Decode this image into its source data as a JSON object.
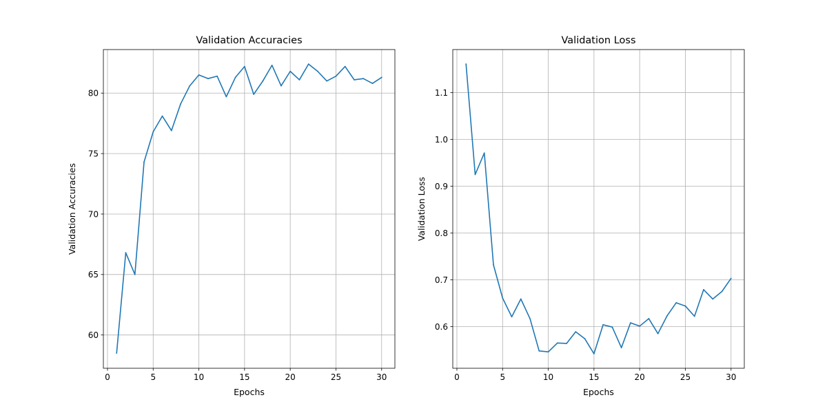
{
  "colors": {
    "line": "#1f77b4",
    "grid": "#b0b0b0",
    "axis": "#000000",
    "background": "#ffffff"
  },
  "chart_data": [
    {
      "type": "line",
      "title": "Validation Accuracies",
      "xlabel": "Epochs",
      "ylabel": "Validation Accuracies",
      "grid": true,
      "xlim": [
        -0.45,
        31.45
      ],
      "ylim": [
        57.25,
        83.6
      ],
      "xticks": [
        0,
        5,
        10,
        15,
        20,
        25,
        30
      ],
      "yticks": [
        60,
        65,
        70,
        75,
        80
      ],
      "x": [
        1,
        2,
        3,
        4,
        5,
        6,
        7,
        8,
        9,
        10,
        11,
        12,
        13,
        14,
        15,
        16,
        17,
        18,
        19,
        20,
        21,
        22,
        23,
        24,
        25,
        26,
        27,
        28,
        29,
        30
      ],
      "series": [
        {
          "values": [
            58.5,
            66.8,
            65.0,
            74.3,
            76.8,
            78.1,
            76.9,
            79.1,
            80.6,
            81.5,
            81.2,
            81.4,
            79.7,
            81.3,
            82.2,
            79.9,
            81.0,
            82.3,
            80.6,
            81.8,
            81.1,
            82.4,
            81.8,
            81.0,
            81.4,
            82.2,
            81.1,
            81.2,
            80.8,
            81.3
          ]
        }
      ]
    },
    {
      "type": "line",
      "title": "Validation Loss",
      "xlabel": "Epochs",
      "ylabel": "Validation Loss",
      "grid": true,
      "xlim": [
        -0.45,
        31.45
      ],
      "ylim": [
        0.511,
        1.192
      ],
      "xticks": [
        0,
        5,
        10,
        15,
        20,
        25,
        30
      ],
      "yticks": [
        0.6,
        0.7,
        0.8,
        0.9,
        1.0,
        1.1
      ],
      "ytick_labels": [
        "0.6",
        "0.7",
        "0.8",
        "0.9",
        "1.0",
        "1.1"
      ],
      "x": [
        1,
        2,
        3,
        4,
        5,
        6,
        7,
        8,
        9,
        10,
        11,
        12,
        13,
        14,
        15,
        16,
        17,
        18,
        19,
        20,
        21,
        22,
        23,
        24,
        25,
        26,
        27,
        28,
        29,
        30
      ],
      "series": [
        {
          "values": [
            1.161,
            0.925,
            0.971,
            0.732,
            0.661,
            0.621,
            0.659,
            0.617,
            0.548,
            0.546,
            0.565,
            0.564,
            0.589,
            0.574,
            0.542,
            0.604,
            0.599,
            0.555,
            0.608,
            0.601,
            0.617,
            0.585,
            0.623,
            0.651,
            0.644,
            0.622,
            0.679,
            0.659,
            0.675,
            0.703
          ]
        }
      ]
    }
  ]
}
